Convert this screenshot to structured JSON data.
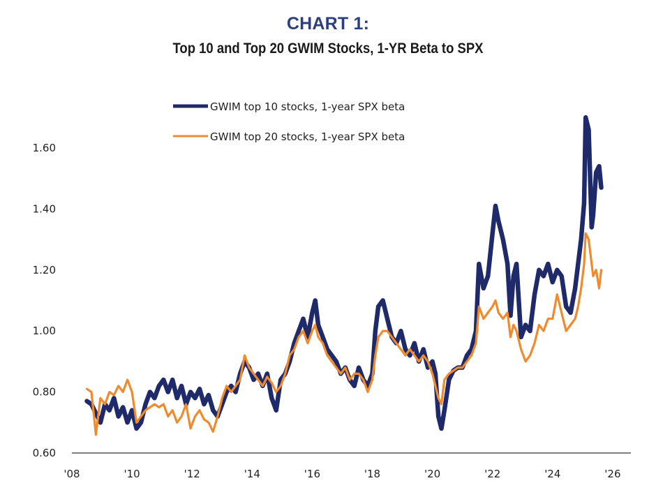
{
  "header": {
    "title": "CHART 1:",
    "subtitle": "Top 10 and Top 20 GWIM Stocks, 1-YR Beta to SPX"
  },
  "colors": {
    "title": "#2b3f7e",
    "top10": "#1f2a6b",
    "top20": "#f08a2c",
    "axis": "#7f7f7f"
  },
  "chart_data": {
    "type": "line",
    "title": "CHART 1: Top 10 and Top 20 GWIM Stocks, 1-YR Beta to SPX",
    "xlabel": "",
    "ylabel": "",
    "xlim": [
      2008,
      2026
    ],
    "ylim": [
      0.6,
      1.7
    ],
    "x_ticks": [
      2008,
      2010,
      2012,
      2014,
      2016,
      2018,
      2020,
      2022,
      2024,
      2026
    ],
    "x_tick_labels": [
      "'08",
      "'10",
      "'12",
      "'14",
      "'16",
      "'18",
      "'20",
      "'22",
      "'24",
      "'26"
    ],
    "y_ticks": [
      0.6,
      0.8,
      1.0,
      1.2,
      1.4,
      1.6
    ],
    "y_tick_labels": [
      "0.60",
      "0.80",
      "1.00",
      "1.20",
      "1.40",
      "1.60"
    ],
    "grid": false,
    "legend_position": "top-center",
    "series": [
      {
        "name": "GWIM top 10 stocks, 1-year SPX beta",
        "x": [
          2008.5,
          2008.65,
          2008.8,
          2008.95,
          2009.1,
          2009.25,
          2009.4,
          2009.55,
          2009.7,
          2009.85,
          2010.0,
          2010.15,
          2010.3,
          2010.45,
          2010.6,
          2010.75,
          2010.9,
          2011.05,
          2011.2,
          2011.35,
          2011.5,
          2011.65,
          2011.8,
          2011.95,
          2012.1,
          2012.25,
          2012.4,
          2012.55,
          2012.7,
          2012.85,
          2013.0,
          2013.15,
          2013.3,
          2013.45,
          2013.6,
          2013.75,
          2013.9,
          2014.05,
          2014.2,
          2014.35,
          2014.5,
          2014.65,
          2014.8,
          2014.95,
          2015.1,
          2015.25,
          2015.4,
          2015.55,
          2015.7,
          2015.85,
          2016.0,
          2016.1,
          2016.2,
          2016.35,
          2016.5,
          2016.65,
          2016.8,
          2016.95,
          2017.1,
          2017.25,
          2017.4,
          2017.55,
          2017.7,
          2017.85,
          2018.0,
          2018.1,
          2018.2,
          2018.35,
          2018.5,
          2018.65,
          2018.8,
          2018.95,
          2019.1,
          2019.25,
          2019.4,
          2019.55,
          2019.7,
          2019.85,
          2020.0,
          2020.1,
          2020.2,
          2020.3,
          2020.4,
          2020.55,
          2020.7,
          2020.85,
          2021.0,
          2021.15,
          2021.3,
          2021.45,
          2021.55,
          2021.7,
          2021.85,
          2022.0,
          2022.1,
          2022.2,
          2022.35,
          2022.5,
          2022.6,
          2022.7,
          2022.8,
          2022.95,
          2023.1,
          2023.25,
          2023.4,
          2023.55,
          2023.7,
          2023.85,
          2024.0,
          2024.15,
          2024.3,
          2024.45,
          2024.6,
          2024.75,
          2024.85,
          2024.95,
          2025.05,
          2025.1,
          2025.2,
          2025.3,
          2025.35,
          2025.45,
          2025.55,
          2025.62
        ],
        "values": [
          0.77,
          0.76,
          0.73,
          0.7,
          0.76,
          0.74,
          0.78,
          0.72,
          0.75,
          0.7,
          0.74,
          0.68,
          0.7,
          0.76,
          0.8,
          0.78,
          0.82,
          0.84,
          0.8,
          0.84,
          0.78,
          0.82,
          0.76,
          0.8,
          0.78,
          0.81,
          0.76,
          0.79,
          0.74,
          0.72,
          0.76,
          0.8,
          0.82,
          0.8,
          0.86,
          0.9,
          0.88,
          0.84,
          0.86,
          0.82,
          0.86,
          0.78,
          0.74,
          0.84,
          0.86,
          0.9,
          0.96,
          1.0,
          1.04,
          0.98,
          1.06,
          1.1,
          1.02,
          0.98,
          0.94,
          0.92,
          0.9,
          0.86,
          0.88,
          0.84,
          0.82,
          0.88,
          0.84,
          0.82,
          0.86,
          1.0,
          1.08,
          1.1,
          1.04,
          0.98,
          0.96,
          1.0,
          0.94,
          0.92,
          0.96,
          0.9,
          0.94,
          0.88,
          0.9,
          0.86,
          0.72,
          0.68,
          0.74,
          0.84,
          0.87,
          0.88,
          0.88,
          0.92,
          0.94,
          1.0,
          1.22,
          1.14,
          1.18,
          1.32,
          1.41,
          1.36,
          1.3,
          1.22,
          1.05,
          1.18,
          1.22,
          0.98,
          1.02,
          1.0,
          1.12,
          1.2,
          1.18,
          1.22,
          1.16,
          1.2,
          1.18,
          1.08,
          1.06,
          1.14,
          1.22,
          1.3,
          1.42,
          1.7,
          1.66,
          1.34,
          1.38,
          1.52,
          1.54,
          1.47
        ]
      },
      {
        "name": "GWIM top 20 stocks, 1-year SPX beta",
        "x": [
          2008.5,
          2008.65,
          2008.8,
          2008.95,
          2009.1,
          2009.25,
          2009.4,
          2009.55,
          2009.7,
          2009.85,
          2010.0,
          2010.15,
          2010.3,
          2010.45,
          2010.6,
          2010.75,
          2010.9,
          2011.05,
          2011.2,
          2011.35,
          2011.5,
          2011.65,
          2011.8,
          2011.95,
          2012.1,
          2012.25,
          2012.4,
          2012.55,
          2012.7,
          2012.85,
          2013.0,
          2013.15,
          2013.3,
          2013.45,
          2013.6,
          2013.75,
          2013.9,
          2014.05,
          2014.2,
          2014.35,
          2014.5,
          2014.65,
          2014.8,
          2014.95,
          2015.1,
          2015.25,
          2015.4,
          2015.55,
          2015.7,
          2015.85,
          2016.0,
          2016.1,
          2016.2,
          2016.35,
          2016.5,
          2016.65,
          2016.8,
          2016.95,
          2017.1,
          2017.25,
          2017.4,
          2017.55,
          2017.7,
          2017.85,
          2018.0,
          2018.1,
          2018.2,
          2018.35,
          2018.5,
          2018.65,
          2018.8,
          2018.95,
          2019.1,
          2019.25,
          2019.4,
          2019.55,
          2019.7,
          2019.85,
          2020.0,
          2020.1,
          2020.2,
          2020.3,
          2020.4,
          2020.55,
          2020.7,
          2020.85,
          2021.0,
          2021.15,
          2021.3,
          2021.45,
          2021.55,
          2021.7,
          2021.85,
          2022.0,
          2022.1,
          2022.2,
          2022.35,
          2022.5,
          2022.6,
          2022.7,
          2022.8,
          2022.95,
          2023.1,
          2023.25,
          2023.4,
          2023.55,
          2023.7,
          2023.85,
          2024.0,
          2024.15,
          2024.3,
          2024.45,
          2024.6,
          2024.75,
          2024.85,
          2024.95,
          2025.05,
          2025.1,
          2025.2,
          2025.3,
          2025.35,
          2025.45,
          2025.55,
          2025.62
        ],
        "values": [
          0.81,
          0.8,
          0.66,
          0.78,
          0.76,
          0.8,
          0.79,
          0.82,
          0.8,
          0.84,
          0.8,
          0.7,
          0.72,
          0.74,
          0.75,
          0.76,
          0.75,
          0.76,
          0.72,
          0.74,
          0.7,
          0.72,
          0.76,
          0.68,
          0.72,
          0.74,
          0.71,
          0.7,
          0.67,
          0.72,
          0.78,
          0.82,
          0.8,
          0.82,
          0.84,
          0.92,
          0.88,
          0.86,
          0.84,
          0.82,
          0.85,
          0.83,
          0.8,
          0.82,
          0.86,
          0.92,
          0.94,
          0.98,
          1.0,
          0.96,
          1.0,
          1.02,
          0.98,
          0.96,
          0.92,
          0.9,
          0.88,
          0.86,
          0.88,
          0.84,
          0.86,
          0.86,
          0.84,
          0.8,
          0.84,
          0.92,
          0.98,
          1.0,
          1.0,
          0.98,
          0.96,
          0.94,
          0.92,
          0.94,
          0.92,
          0.9,
          0.92,
          0.9,
          0.86,
          0.82,
          0.78,
          0.76,
          0.84,
          0.86,
          0.87,
          0.88,
          0.88,
          0.9,
          0.92,
          0.96,
          1.08,
          1.04,
          1.06,
          1.08,
          1.1,
          1.06,
          1.04,
          1.06,
          0.98,
          1.02,
          1.0,
          0.94,
          0.9,
          0.92,
          0.96,
          1.02,
          1.0,
          1.04,
          1.04,
          1.12,
          1.06,
          1.0,
          1.02,
          1.04,
          1.08,
          1.14,
          1.22,
          1.32,
          1.3,
          1.22,
          1.18,
          1.2,
          1.14,
          1.2
        ]
      }
    ]
  }
}
